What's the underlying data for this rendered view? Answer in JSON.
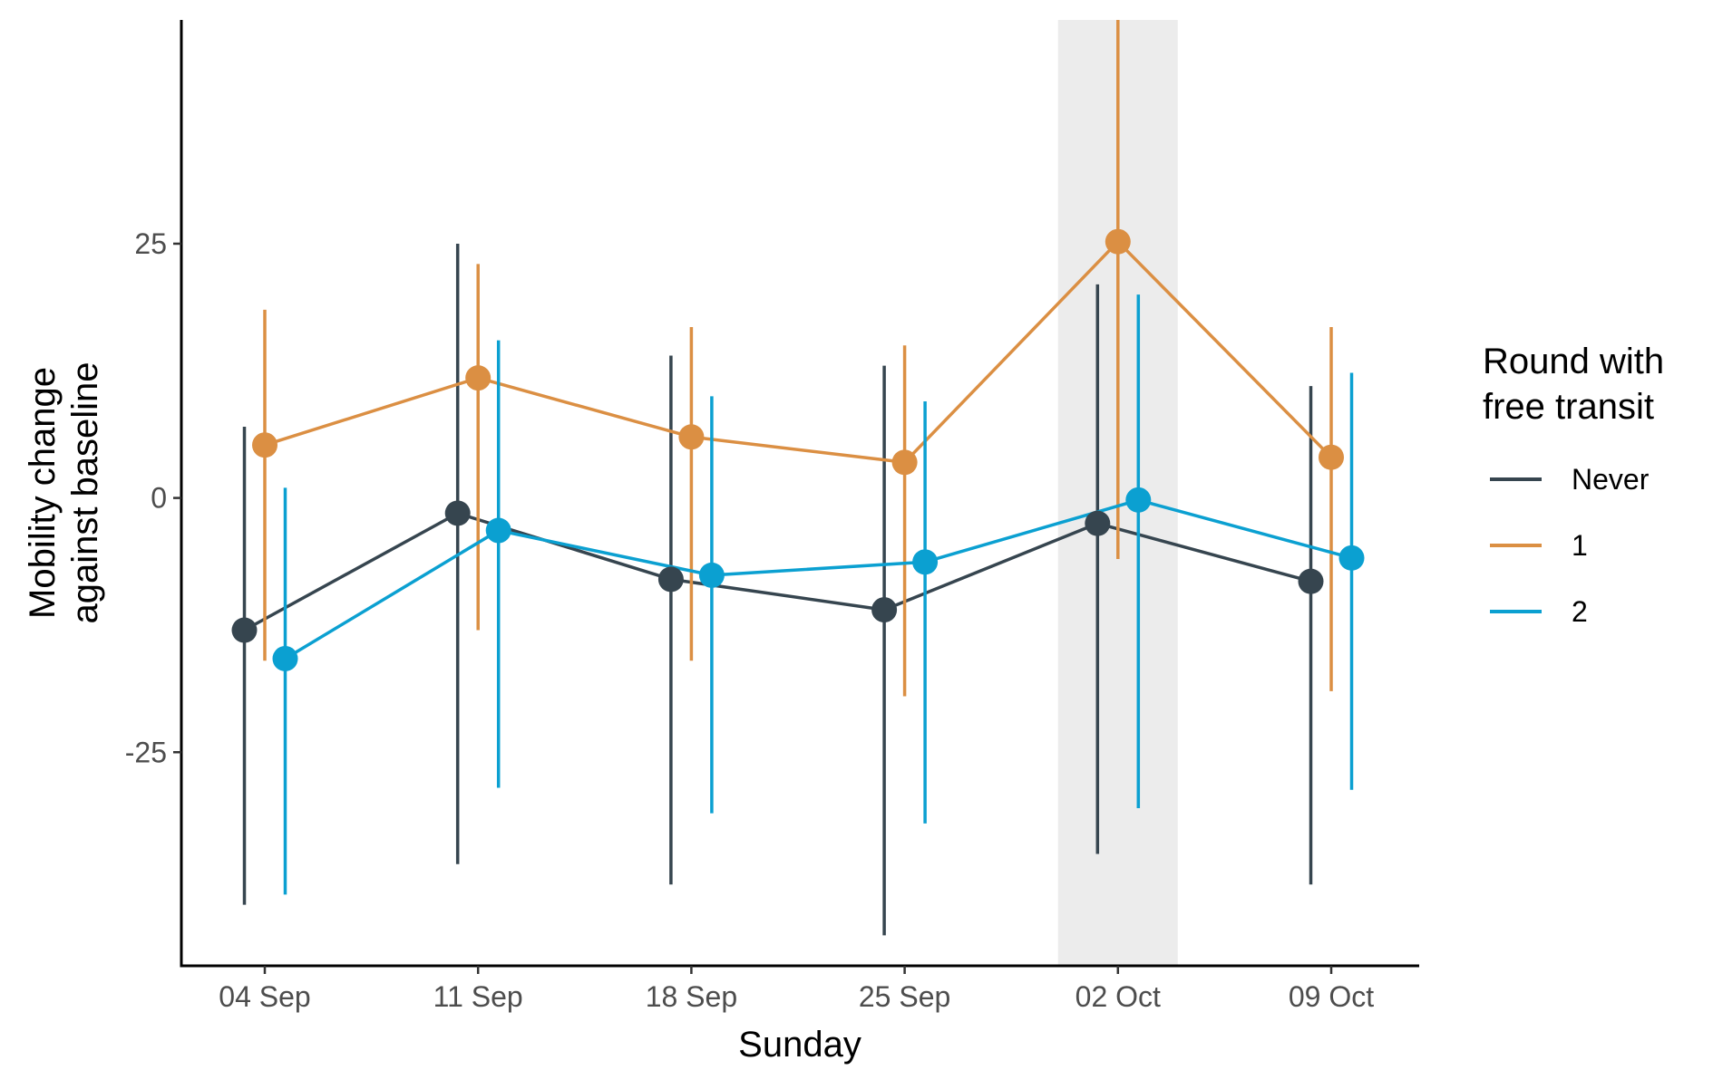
{
  "chart_data": {
    "type": "line",
    "xlabel": "Sunday",
    "ylabel_lines": [
      "Mobility change",
      "against baseline"
    ],
    "categories": [
      "04 Sep",
      "11 Sep",
      "18 Sep",
      "25 Sep",
      "02 Oct",
      "09 Oct"
    ],
    "ylim": [
      -46,
      47
    ],
    "yticks": [
      25,
      0,
      -25
    ],
    "ytick_labels": [
      "25",
      "0",
      "-25"
    ],
    "grid": false,
    "highlight_category": "02 Oct",
    "highlight_color": "#ececec",
    "legend": {
      "title_lines": [
        "Round with",
        "free transit"
      ],
      "placement": "right"
    },
    "series": [
      {
        "name": "Never",
        "color": "#36454f",
        "values": [
          -13,
          -1.5,
          -8,
          -11,
          -2.5,
          -8.2
        ],
        "lower": [
          -40,
          -36,
          -38,
          -43,
          -35,
          -38
        ],
        "upper": [
          7,
          25,
          14,
          13,
          21,
          11
        ]
      },
      {
        "name": "1",
        "color": "#db8f43",
        "values": [
          5.2,
          11.8,
          6,
          3.5,
          25.2,
          4
        ],
        "lower": [
          -16,
          -13,
          -16,
          -19.5,
          -6,
          -19
        ],
        "upper": [
          18.5,
          23,
          16.8,
          15,
          47,
          16.8
        ]
      },
      {
        "name": "2",
        "color": "#0ba0d1",
        "values": [
          -15.8,
          -3.2,
          -7.6,
          -6.3,
          -0.2,
          -5.9
        ],
        "lower": [
          -39,
          -28.5,
          -31,
          -32,
          -30.5,
          -28.7
        ],
        "upper": [
          1,
          15.5,
          10,
          9.5,
          20,
          12.3
        ]
      }
    ]
  }
}
